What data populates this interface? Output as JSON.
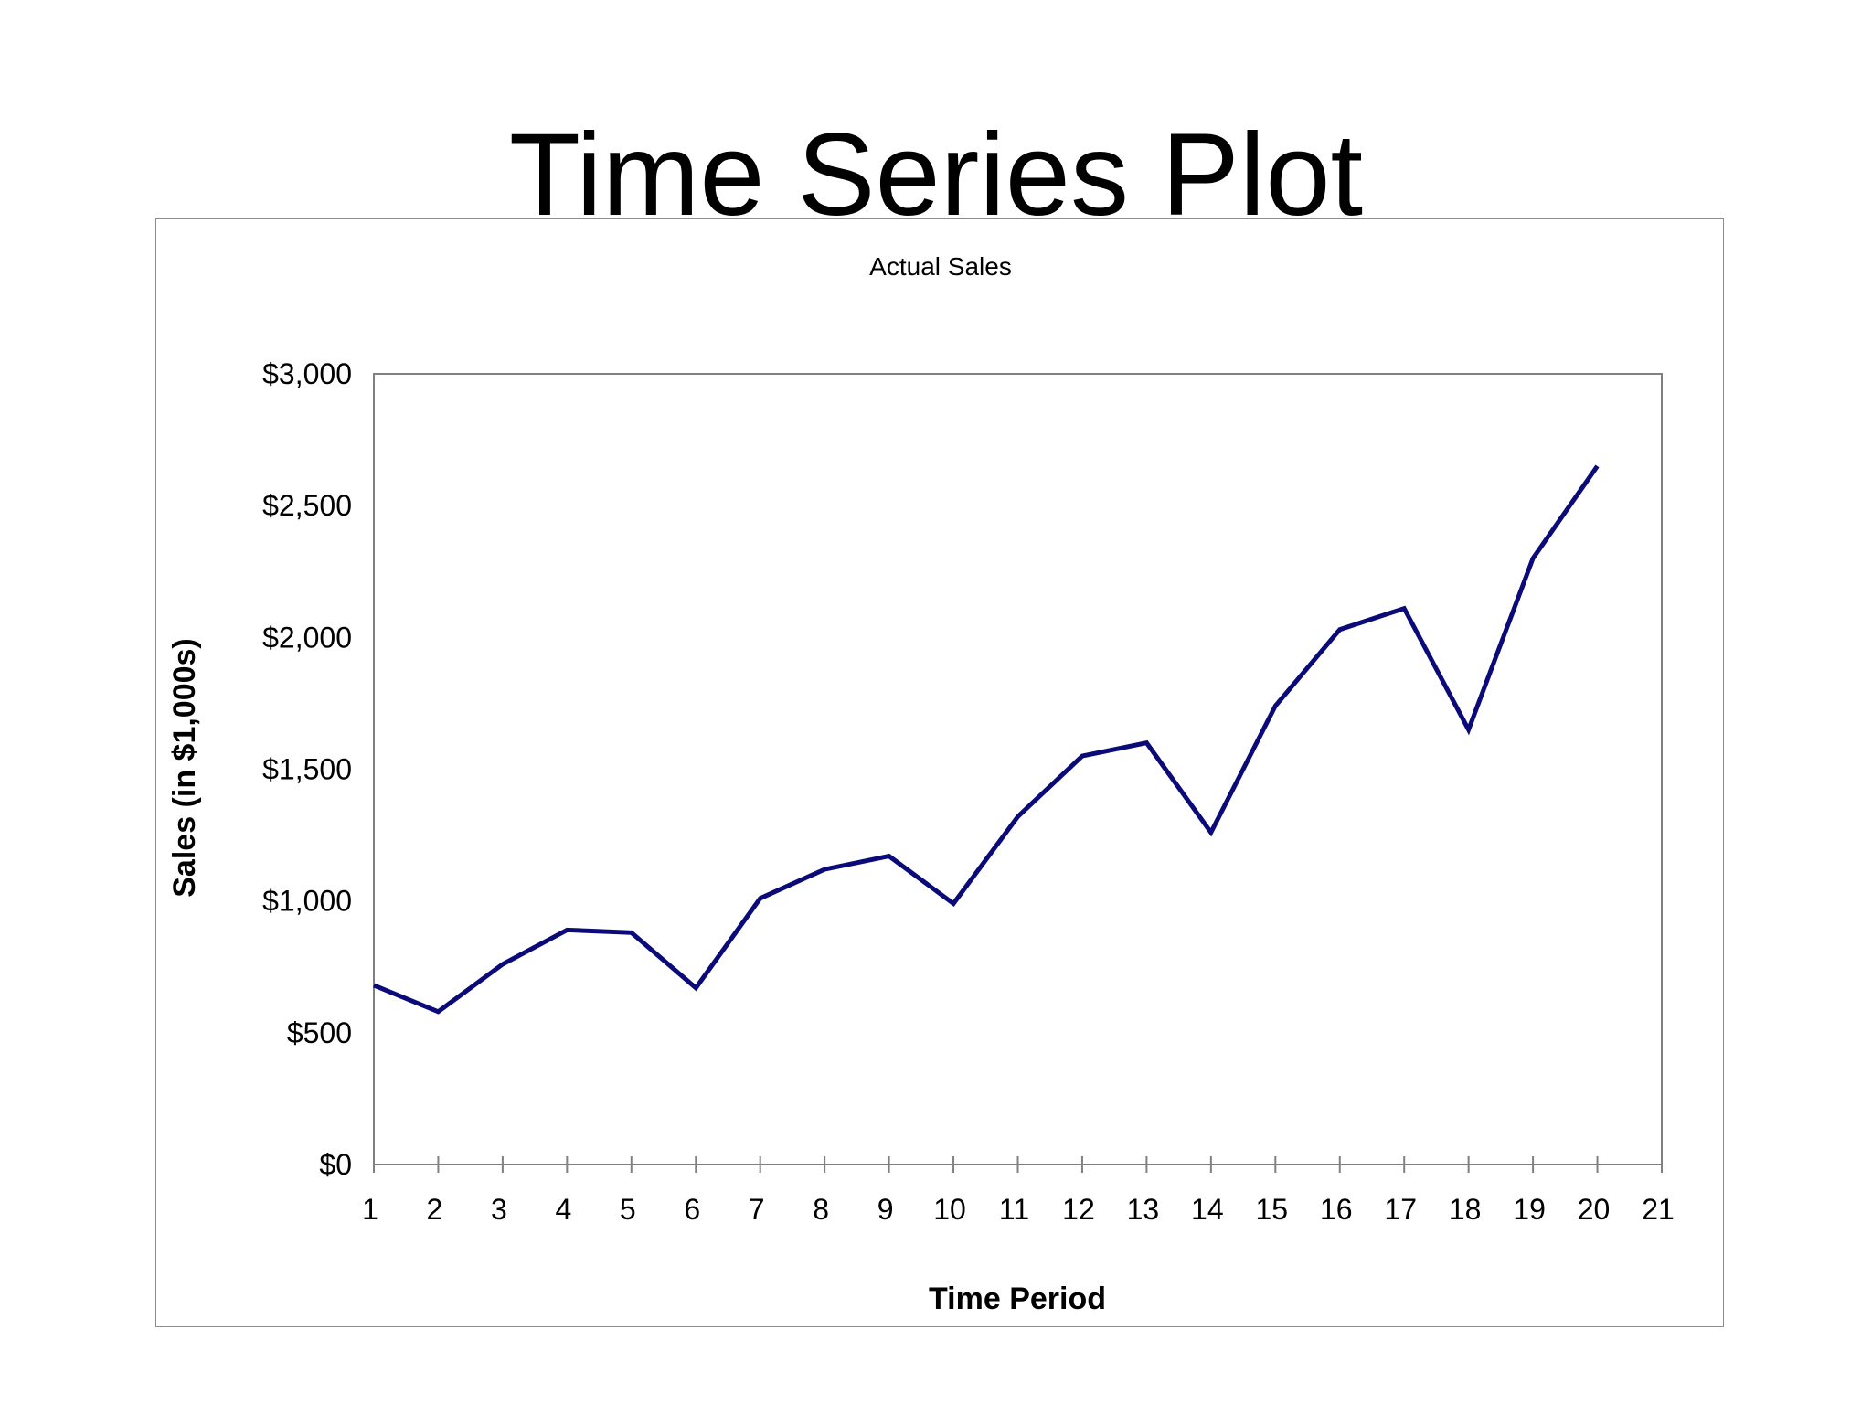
{
  "slide": {
    "title": "Time Series Plot"
  },
  "chart_data": {
    "type": "line",
    "title": "Actual Sales",
    "xlabel": "Time Period",
    "ylabel": "Sales (in $1,000s)",
    "x_ticks": [
      "1",
      "2",
      "3",
      "4",
      "5",
      "6",
      "7",
      "8",
      "9",
      "10",
      "11",
      "12",
      "13",
      "14",
      "15",
      "16",
      "17",
      "18",
      "19",
      "20",
      "21"
    ],
    "y_ticks": [
      "$0",
      "$500",
      "$1,000",
      "$1,500",
      "$2,000",
      "$2,500",
      "$3,000"
    ],
    "xlim": [
      1,
      21
    ],
    "ylim": [
      0,
      3000
    ],
    "grid": false,
    "line_color": "#0a0a78",
    "series": [
      {
        "x": [
          1,
          2,
          3,
          4,
          5,
          6,
          7,
          8,
          9,
          10,
          11,
          12,
          13,
          14,
          15,
          16,
          17,
          18,
          19,
          20
        ],
        "values": [
          680,
          580,
          760,
          890,
          880,
          670,
          1010,
          1120,
          1170,
          990,
          1320,
          1550,
          1600,
          1260,
          1740,
          2030,
          2110,
          1650,
          2300,
          2650
        ]
      }
    ]
  }
}
